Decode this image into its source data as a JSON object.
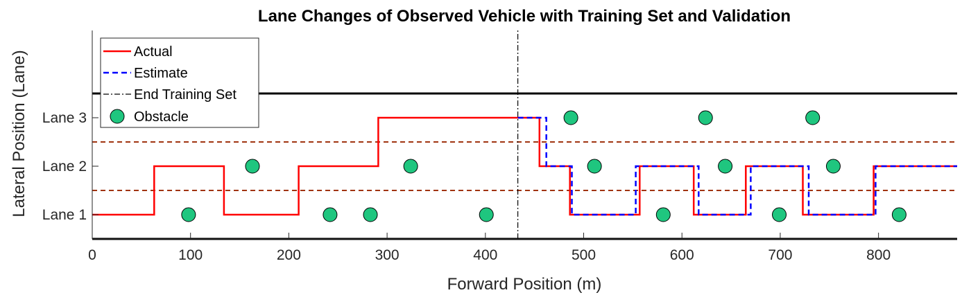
{
  "chart_data": {
    "type": "line",
    "title": "Lane Changes of Observed Vehicle with Training Set and Validation",
    "xlabel": "Forward Position (m)",
    "ylabel": "Lateral Position (Lane)",
    "xlim": [
      0,
      880
    ],
    "ylim": [
      0.5,
      4.8
    ],
    "x_ticks": [
      0,
      100,
      200,
      300,
      400,
      500,
      600,
      700,
      800
    ],
    "x_tick_labels": [
      "0",
      "100",
      "200",
      "300",
      "400",
      "500",
      "600",
      "700",
      "800"
    ],
    "y_ticks": [
      1,
      2,
      3
    ],
    "y_tick_labels": [
      "Lane 1",
      "Lane 2",
      "Lane 3"
    ],
    "grid": false,
    "legend_position": "top-left",
    "road_boundaries": {
      "values": [
        0.5,
        3.5
      ],
      "color": "#000000"
    },
    "lane_dividers": {
      "values": [
        1.5,
        2.5
      ],
      "color": "#a0330f"
    },
    "series": [
      {
        "name": "Actual",
        "color": "#ff0000",
        "style": "solid",
        "x": [
          0,
          63,
          63,
          134,
          134,
          210,
          210,
          291,
          291,
          455,
          455,
          486,
          486,
          557,
          557,
          612,
          612,
          665,
          665,
          723,
          723,
          795,
          795,
          880
        ],
        "y": [
          1,
          1,
          2,
          2,
          1,
          1,
          2,
          2,
          3,
          3,
          2,
          2,
          1,
          1,
          2,
          2,
          1,
          1,
          2,
          2,
          1,
          1,
          2,
          2
        ]
      },
      {
        "name": "Estimate",
        "color": "#0000ff",
        "style": "dashed",
        "x": [
          433,
          462,
          462,
          488,
          488,
          553,
          553,
          617,
          617,
          670,
          670,
          729,
          729,
          797,
          797,
          880
        ],
        "y": [
          3,
          3,
          2,
          2,
          1,
          1,
          2,
          2,
          1,
          1,
          2,
          2,
          1,
          1,
          2,
          2
        ]
      },
      {
        "name": "End Training Set",
        "color": "#000000",
        "style": "dashdot",
        "x": [
          433,
          433
        ],
        "y": [
          0.5,
          4.8
        ]
      },
      {
        "name": "Obstacle",
        "color": "#1fc67f",
        "style": "marker",
        "x": [
          98,
          163,
          242,
          283,
          324,
          401,
          487,
          511,
          581,
          624,
          644,
          699,
          733,
          754,
          821
        ],
        "y": [
          1,
          2,
          1,
          1,
          2,
          1,
          3,
          2,
          1,
          3,
          2,
          1,
          3,
          2,
          1
        ]
      }
    ]
  }
}
